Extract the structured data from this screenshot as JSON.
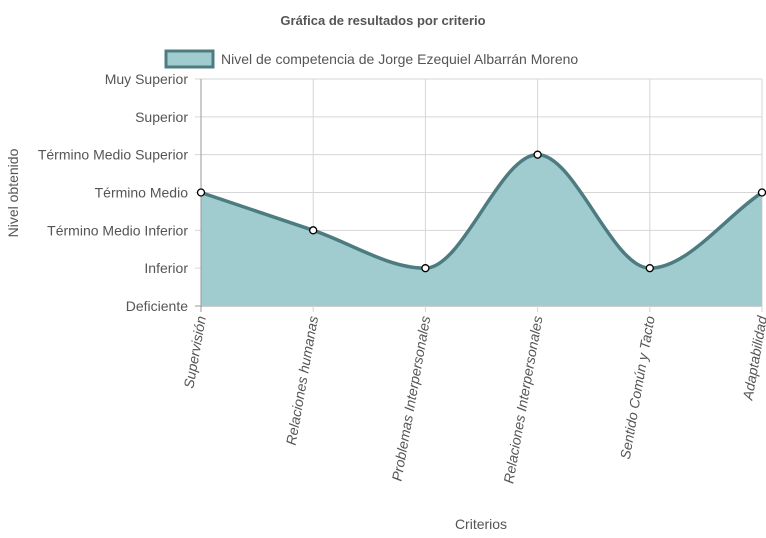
{
  "chart_data": {
    "type": "area",
    "title": "Gráfica de resultados por criterio",
    "xlabel": "Criterios",
    "ylabel": "Nivel obtenido",
    "categories": [
      "Supervisión",
      "Relaciones humanas",
      "Problemas Interpersonales",
      "Relaciones Interpersonales",
      "Sentido Común y Tacto",
      "Adaptabilidad"
    ],
    "levels": [
      "Deficiente",
      "Inferior",
      "Término Medio Inferior",
      "Término Medio",
      "Término Medio Superior",
      "Superior",
      "Muy Superior"
    ],
    "ylim": [
      0,
      6
    ],
    "series": [
      {
        "name": "Nivel de competencia de Jorge Ezequiel Albarrán Moreno",
        "values": [
          3,
          2,
          1,
          4,
          1,
          3
        ]
      }
    ],
    "grid": true,
    "legend": "top",
    "colors": {
      "fill": "#a1cccf",
      "line": "#4d7c80",
      "grid": "#d6d6d6",
      "text": "#555555",
      "point_fill": "#ffffff",
      "point_stroke": "#000000"
    }
  }
}
